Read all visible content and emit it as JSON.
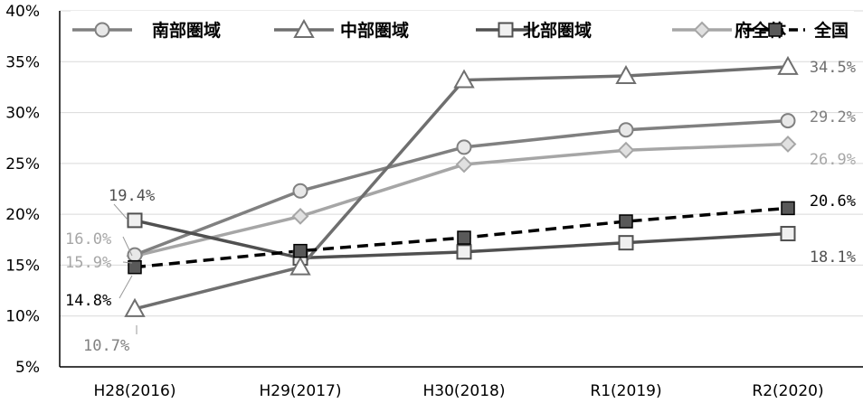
{
  "chart_data": {
    "type": "line",
    "categories": [
      "H28(2016)",
      "H29(2017)",
      "H30(2018)",
      "R1(2019)",
      "R2(2020)"
    ],
    "ylim": [
      5,
      40
    ],
    "y_ticks": [
      "5%",
      "10%",
      "15%",
      "20%",
      "25%",
      "30%",
      "35%",
      "40%"
    ],
    "grid": true,
    "legend_position": "top",
    "series": [
      {
        "name": "南部圏域",
        "values": [
          16.0,
          22.3,
          26.6,
          28.3,
          29.2
        ],
        "color": "#808080",
        "marker": "circle",
        "dashed": false,
        "labels": [
          "16.0%",
          "",
          "",
          "",
          "29.2%"
        ]
      },
      {
        "name": "中部圏域",
        "values": [
          10.7,
          14.8,
          33.2,
          33.6,
          34.5
        ],
        "color": "#6f6f6f",
        "marker": "triangle",
        "dashed": false,
        "labels": [
          "10.7%",
          "",
          "",
          "",
          "34.5%"
        ]
      },
      {
        "name": "北部圏域",
        "values": [
          19.4,
          15.7,
          16.3,
          17.2,
          18.1
        ],
        "color": "#505050",
        "marker": "square-open",
        "dashed": false,
        "labels": [
          "19.4%",
          "",
          "",
          "",
          "18.1%"
        ]
      },
      {
        "name": "府全体",
        "values": [
          15.9,
          19.8,
          24.9,
          26.3,
          26.9
        ],
        "color": "#a6a6a6",
        "marker": "diamond",
        "dashed": false,
        "labels": [
          "15.9%",
          "",
          "",
          "",
          "26.9%"
        ]
      },
      {
        "name": "全国",
        "values": [
          14.8,
          16.4,
          17.7,
          19.3,
          20.6
        ],
        "color": "#000000",
        "marker": "square-filled",
        "dashed": true,
        "labels": [
          "14.8%",
          "",
          "",
          "",
          "20.6%"
        ]
      }
    ]
  }
}
